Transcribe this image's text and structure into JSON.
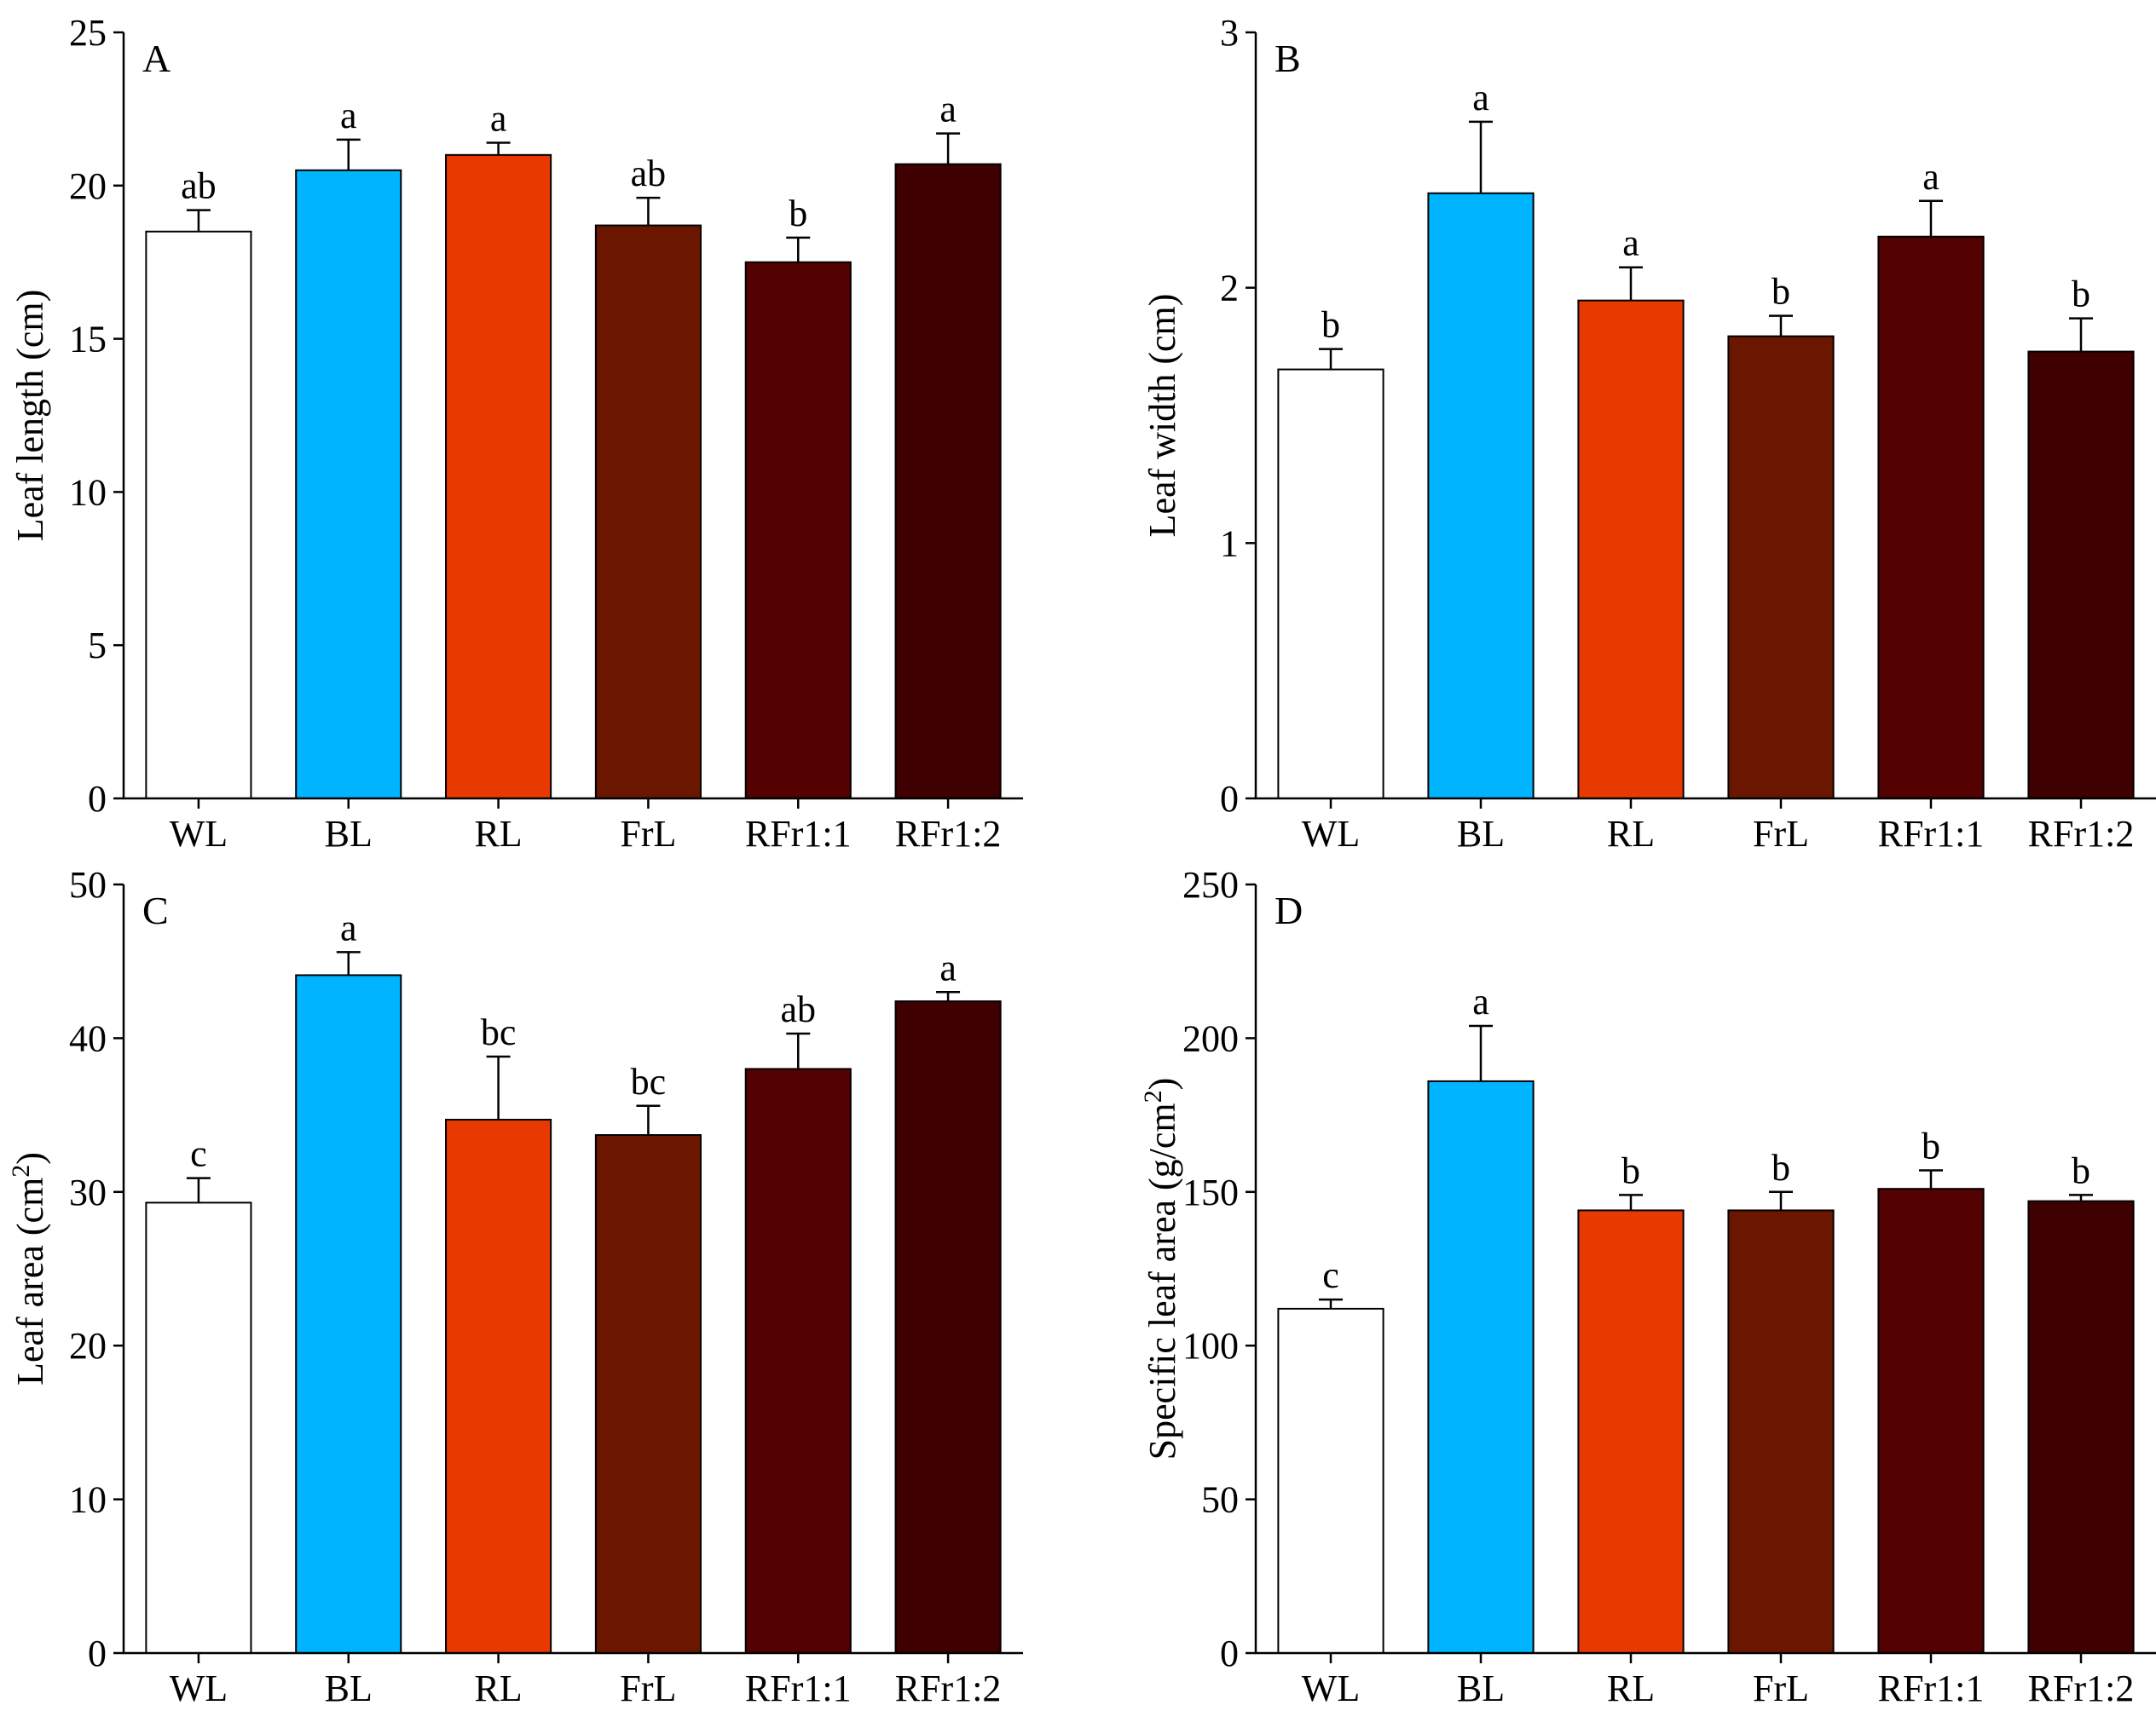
{
  "chart_data": [
    {
      "id": "A",
      "type": "bar",
      "panel_label": "A",
      "ylabel": "Leaf length (cm)",
      "ylabel_superscript": "",
      "ylabel_suffix": "",
      "ylim": [
        0,
        25
      ],
      "yticks": [
        0,
        5,
        10,
        15,
        20,
        25
      ],
      "categories": [
        "WL",
        "BL",
        "RL",
        "FrL",
        "RFr1:1",
        "RFr1:2"
      ],
      "values": [
        18.5,
        20.5,
        21.0,
        18.7,
        17.5,
        20.7
      ],
      "errors": [
        0.7,
        1.0,
        0.4,
        0.9,
        0.8,
        1.0
      ],
      "significance": [
        "ab",
        "a",
        "a",
        "ab",
        "b",
        "a"
      ],
      "colors": [
        "#FFFFFF",
        "#00B4FF",
        "#E83A00",
        "#6B1700",
        "#540101",
        "#3F0001"
      ]
    },
    {
      "id": "B",
      "type": "bar",
      "panel_label": "B",
      "ylabel": "Leaf width (cm)",
      "ylabel_superscript": "",
      "ylabel_suffix": "",
      "ylim": [
        0,
        3
      ],
      "yticks": [
        0,
        1,
        2,
        3
      ],
      "categories": [
        "WL",
        "BL",
        "RL",
        "FrL",
        "RFr1:1",
        "RFr1:2"
      ],
      "values": [
        1.68,
        2.37,
        1.95,
        1.81,
        2.2,
        1.75
      ],
      "errors": [
        0.08,
        0.28,
        0.13,
        0.08,
        0.14,
        0.13
      ],
      "significance": [
        "b",
        "a",
        "a",
        "b",
        "a",
        "b"
      ],
      "colors": [
        "#FFFFFF",
        "#00B4FF",
        "#E83A00",
        "#6B1700",
        "#540101",
        "#3F0001"
      ]
    },
    {
      "id": "C",
      "type": "bar",
      "panel_label": "C",
      "ylabel": "Leaf area (cm",
      "ylabel_superscript": "2",
      "ylabel_suffix": ")",
      "ylim": [
        0,
        50
      ],
      "yticks": [
        0,
        10,
        20,
        30,
        40,
        50
      ],
      "categories": [
        "WL",
        "BL",
        "RL",
        "FrL",
        "RFr1:1",
        "RFr1:2"
      ],
      "values": [
        29.3,
        44.1,
        34.7,
        33.7,
        38.0,
        42.4
      ],
      "errors": [
        1.6,
        1.5,
        4.1,
        1.9,
        2.3,
        0.6
      ],
      "significance": [
        "c",
        "a",
        "bc",
        "bc",
        "ab",
        "a"
      ],
      "colors": [
        "#FFFFFF",
        "#00B4FF",
        "#E83A00",
        "#6B1700",
        "#540101",
        "#3F0001"
      ]
    },
    {
      "id": "D",
      "type": "bar",
      "panel_label": "D",
      "ylabel": "Specific leaf area (g/cm",
      "ylabel_superscript": "2",
      "ylabel_suffix": ")",
      "ylim": [
        0,
        250
      ],
      "yticks": [
        0,
        50,
        100,
        150,
        200,
        250
      ],
      "categories": [
        "WL",
        "BL",
        "RL",
        "FrL",
        "RFr1:1",
        "RFr1:2"
      ],
      "values": [
        112,
        186,
        144,
        144,
        151,
        147
      ],
      "errors": [
        3,
        18,
        5,
        6,
        6,
        2
      ],
      "significance": [
        "c",
        "a",
        "b",
        "b",
        "b",
        "b"
      ],
      "colors": [
        "#FFFFFF",
        "#00B4FF",
        "#E83A00",
        "#6B1700",
        "#540101",
        "#3F0001"
      ]
    }
  ]
}
